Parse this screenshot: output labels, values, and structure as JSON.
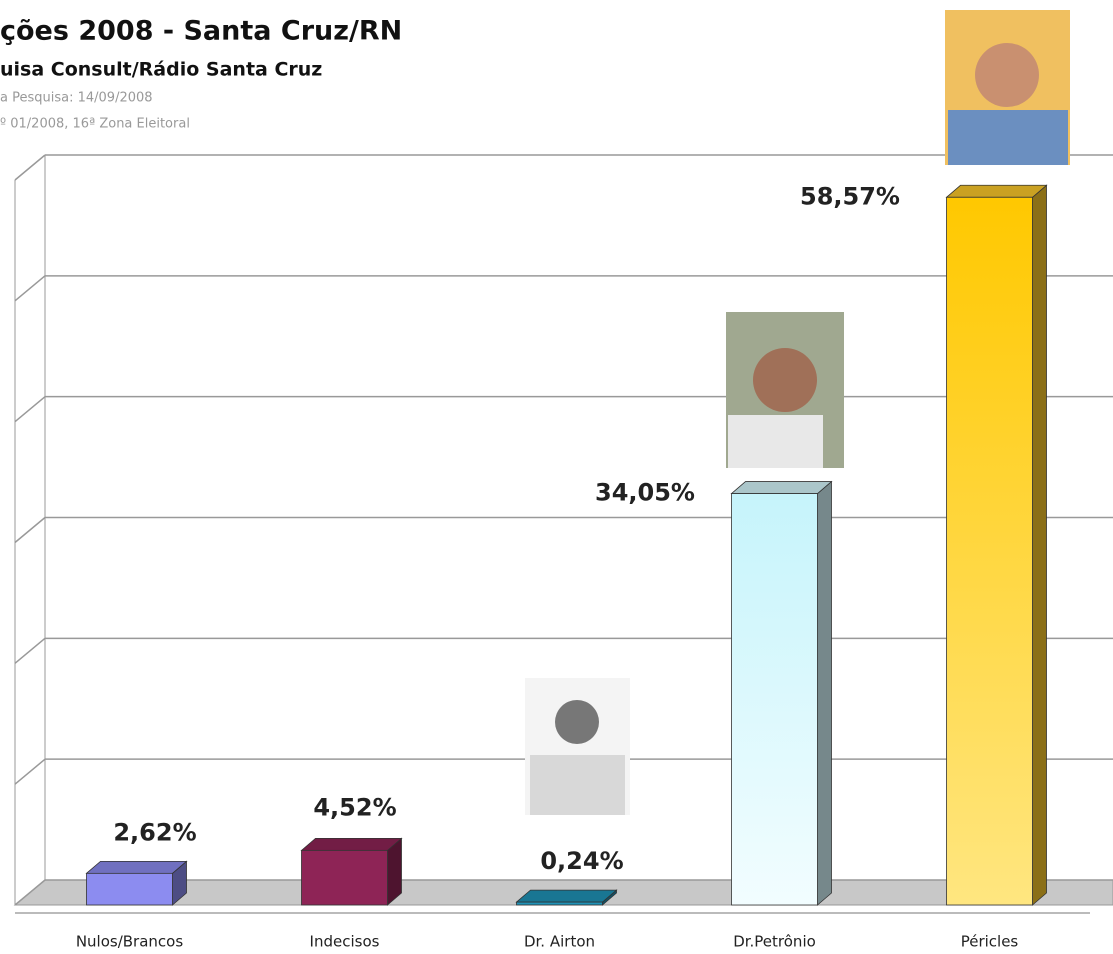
{
  "chart_data": {
    "type": "bar3d",
    "title": "ções 2008 - Santa Cruz/RN",
    "subtitle": "uisa Consult/Rádio Santa Cruz",
    "notes": [
      "a Pesquisa: 14/09/2008",
      "º 01/2008, 16ª Zona Eleitoral"
    ],
    "categories": [
      "Nulos/Brancos",
      "Indecisos",
      "Dr. Airton",
      "Dr.Petrônio",
      "Péricles"
    ],
    "values": [
      2.62,
      4.52,
      0.24,
      34.05,
      58.57
    ],
    "value_labels": [
      "2,62%",
      "4,52%",
      "0,24%",
      "34,05%",
      "58,57%"
    ],
    "colors": [
      "#8c8cf0",
      "#8e2456",
      "#1f93b8",
      "#d6f7fc",
      "#fcc92a"
    ],
    "ylim": [
      0,
      60
    ],
    "yticks": [
      0,
      10,
      20,
      30,
      40,
      50,
      60
    ],
    "grid": true
  }
}
